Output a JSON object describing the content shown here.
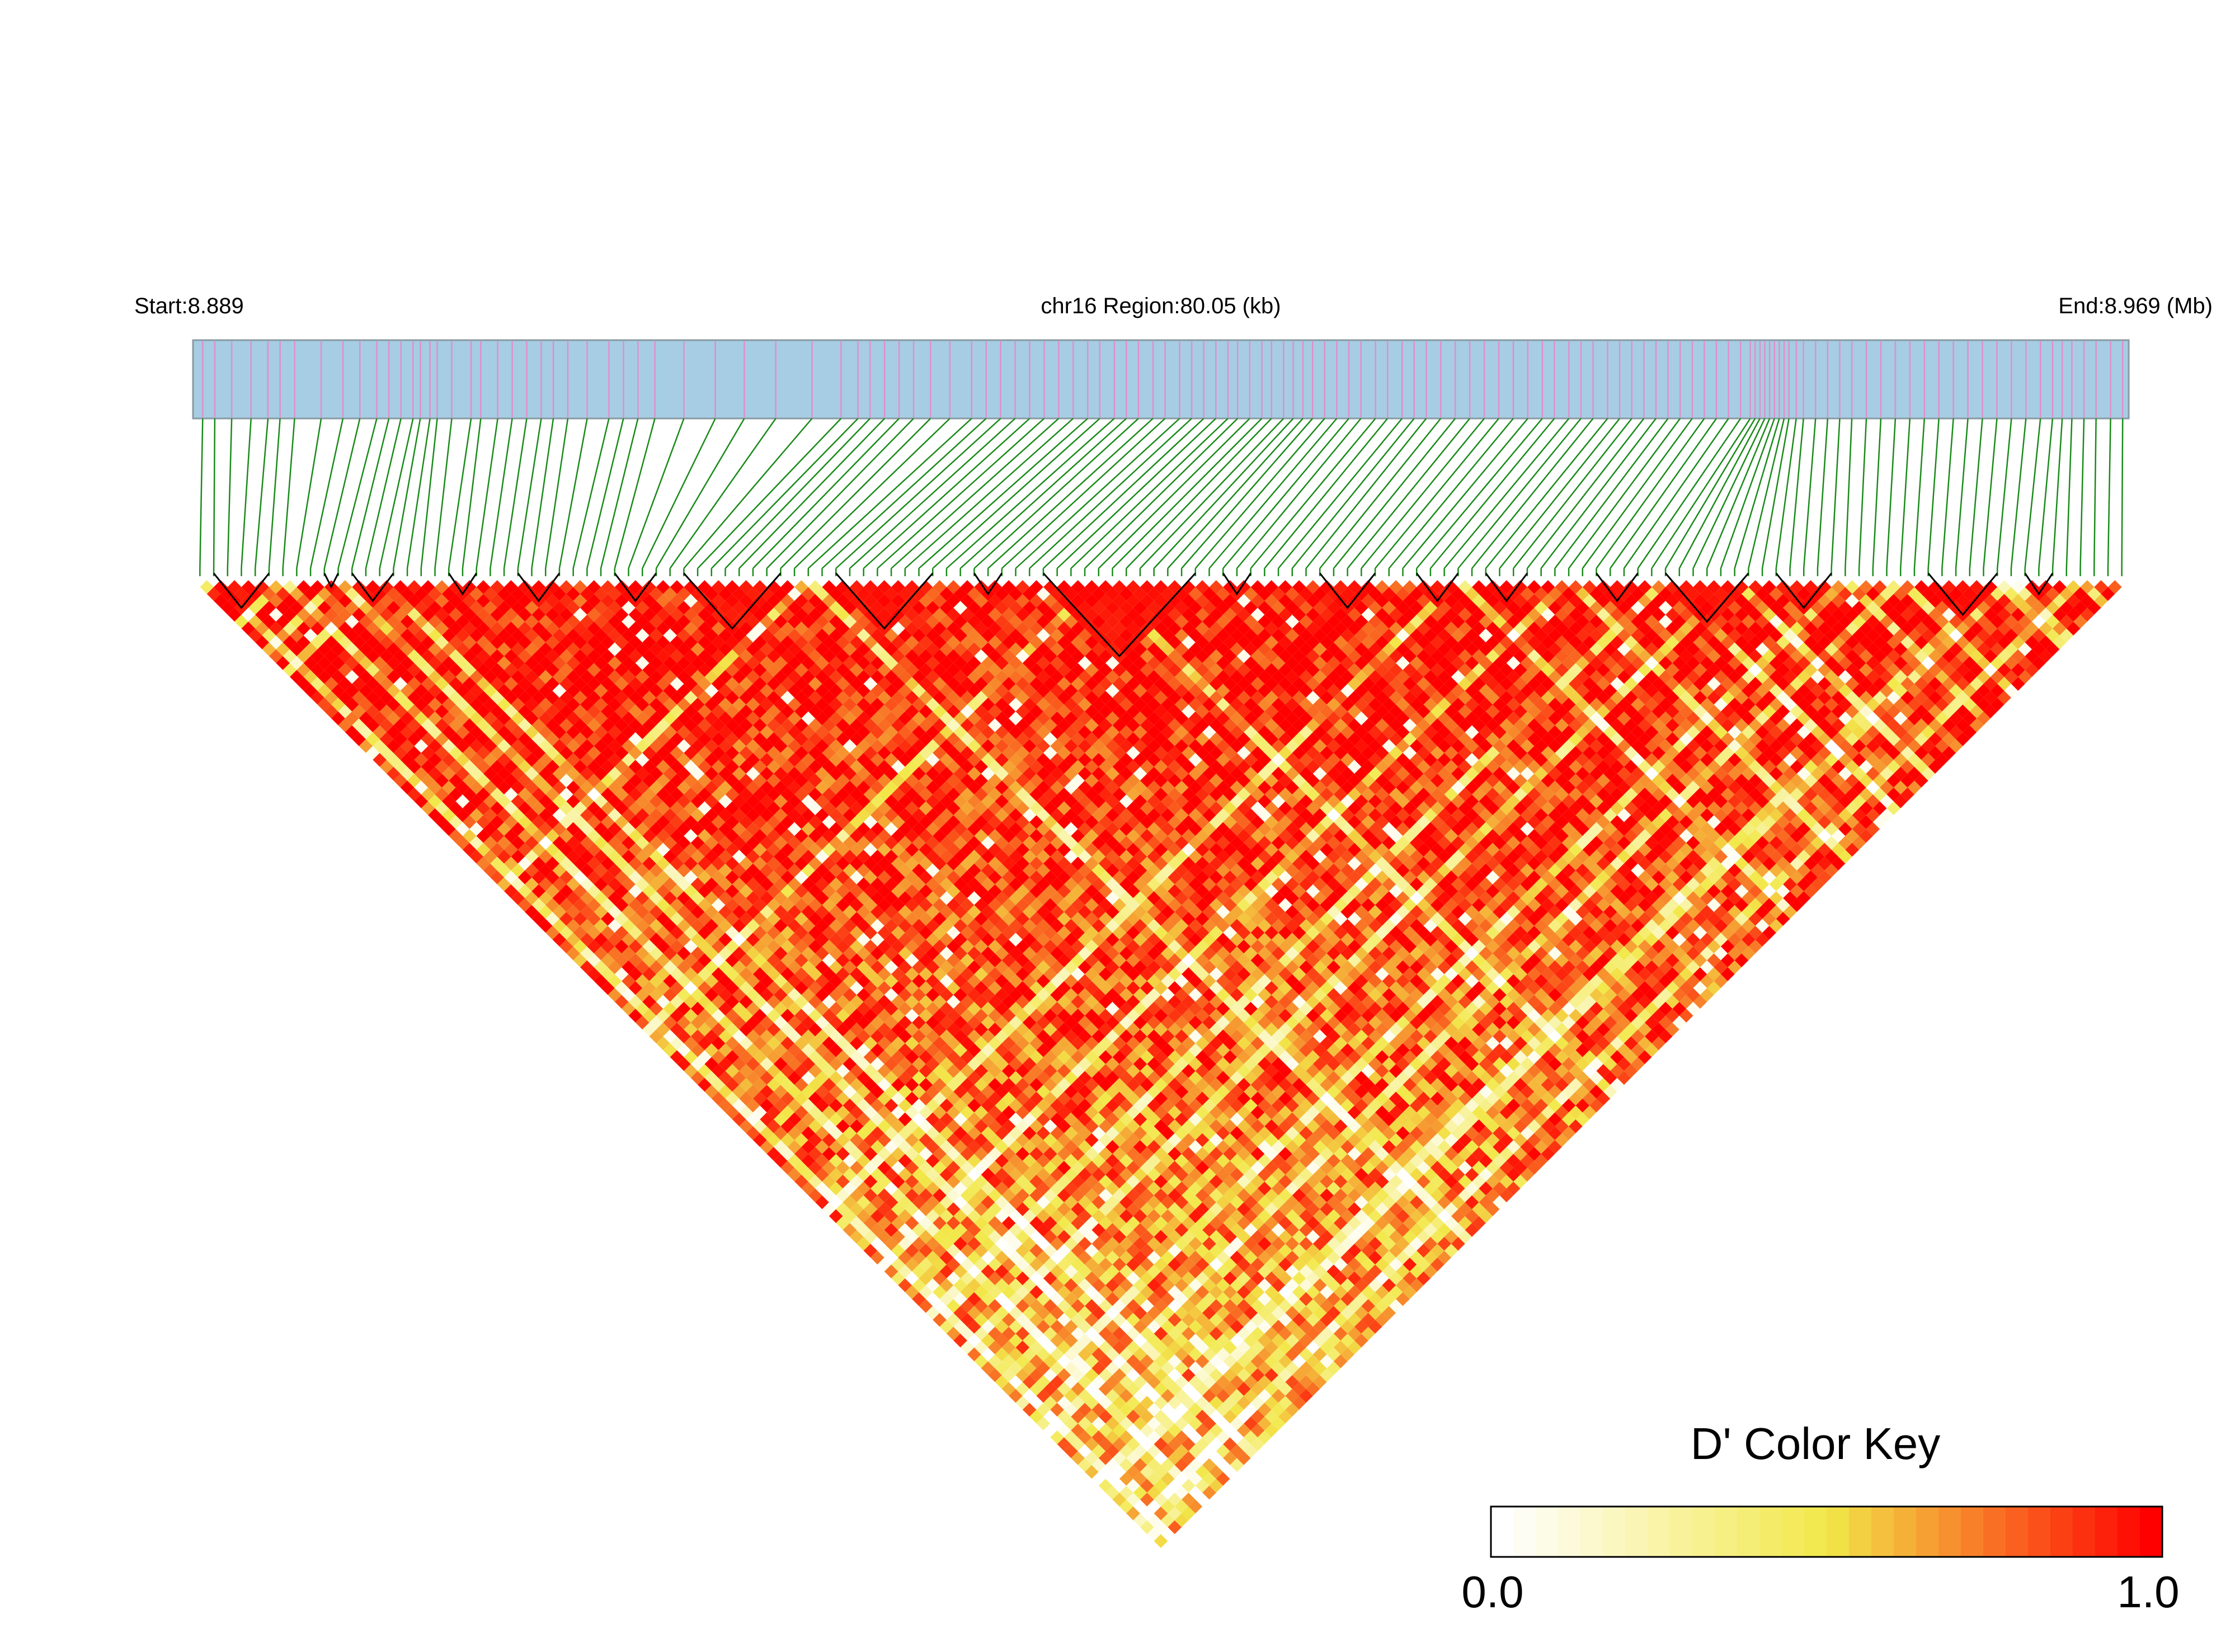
{
  "chart_data": {
    "type": "heatmap",
    "subtype": "linkage-disequilibrium-triangle",
    "header": {
      "start_label": "Start:8.889",
      "region_label": "chr16 Region:80.05 (kb)",
      "end_label": "End:8.969 (Mb)"
    },
    "chromosome": "chr16",
    "region_start_mb": 8.889,
    "region_end_mb": 8.969,
    "region_length_kb": 80.05,
    "snp_count": 140,
    "snp_positions_kb": [
      0.4,
      0.9,
      1.6,
      2.4,
      3.1,
      3.6,
      4.2,
      5.3,
      6.2,
      6.9,
      7.6,
      8.1,
      8.6,
      9.1,
      9.4,
      9.8,
      10.1,
      10.7,
      11.5,
      11.9,
      12.6,
      13.2,
      13.8,
      14.4,
      14.9,
      15.5,
      16.3,
      17.2,
      17.8,
      18.4,
      19.1,
      20.3,
      21.6,
      22.8,
      24.1,
      25.6,
      26.8,
      27.5,
      28.0,
      28.6,
      29.2,
      29.8,
      30.5,
      31.3,
      32.2,
      32.8,
      33.4,
      34.0,
      34.6,
      35.2,
      35.8,
      36.4,
      37.0,
      37.5,
      38.1,
      38.6,
      39.1,
      39.7,
      40.2,
      40.8,
      41.3,
      41.8,
      42.3,
      42.8,
      43.2,
      43.7,
      44.2,
      44.6,
      45.1,
      45.5,
      45.9,
      46.3,
      46.8,
      47.3,
      47.8,
      48.3,
      48.9,
      49.4,
      50.0,
      50.5,
      51.0,
      51.6,
      52.2,
      52.8,
      53.4,
      54.0,
      54.6,
      55.2,
      55.8,
      56.3,
      56.9,
      57.4,
      57.9,
      58.5,
      59.0,
      59.5,
      60.0,
      60.5,
      61.0,
      61.5,
      62.0,
      62.5,
      63.0,
      63.5,
      64.0,
      64.4,
      64.6,
      64.8,
      65.0,
      65.2,
      65.4,
      65.6,
      65.8,
      66.0,
      66.3,
      66.6,
      67.1,
      67.6,
      68.1,
      68.6,
      69.2,
      69.8,
      70.4,
      71.0,
      71.6,
      72.2,
      72.8,
      73.4,
      74.0,
      74.6,
      75.2,
      75.8,
      76.4,
      76.9,
      77.3,
      77.7,
      78.2,
      78.7,
      79.3,
      79.8
    ],
    "haplotype_blocks": [
      [
        1,
        5
      ],
      [
        9,
        10
      ],
      [
        11,
        14
      ],
      [
        18,
        20
      ],
      [
        23,
        26
      ],
      [
        30,
        33
      ],
      [
        35,
        42
      ],
      [
        46,
        53
      ],
      [
        56,
        58
      ],
      [
        61,
        72
      ],
      [
        74,
        76
      ],
      [
        81,
        85
      ],
      [
        88,
        91
      ],
      [
        93,
        96
      ],
      [
        101,
        104
      ],
      [
        106,
        112
      ],
      [
        114,
        118
      ],
      [
        125,
        130
      ],
      [
        132,
        134
      ]
    ],
    "d_prime_matrix_note": "D' value for every SNP pair in the lower triangle (140x140); generated pattern approximating the figure, mostly high (red) with lower (yellow/white) patches",
    "colorscale": [
      "#ffffff",
      "#f2e84a",
      "#ff0000"
    ],
    "legend": {
      "title": "D' Color Key",
      "min_label": "0.0",
      "max_label": "1.0",
      "min": 0.0,
      "max": 1.0,
      "steps": 30
    },
    "colors": {
      "track": "#a6cde3",
      "snp_tick": "#e28ecb",
      "connector": "#1a8a1a",
      "block_outline": "#000000"
    }
  }
}
